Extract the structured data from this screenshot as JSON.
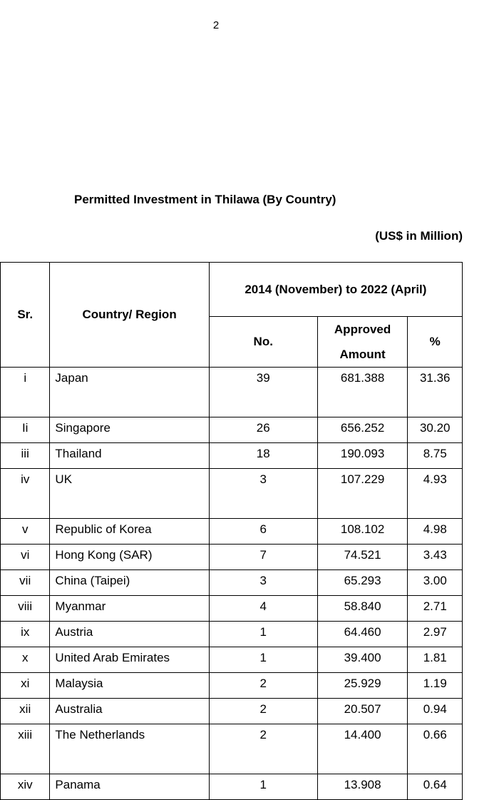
{
  "page_number": "2",
  "title": "Permitted Investment in Thilawa (By Country)",
  "unit_note": "(US$ in Million)",
  "table": {
    "headers": {
      "sr": "Sr.",
      "country": "Country/ Region",
      "period": "2014 (November) to 2022 (April)",
      "no": "No.",
      "amount_line1": "Approved",
      "amount_line2": "Amount",
      "pct": "%"
    },
    "rows": [
      {
        "sr": "i",
        "country": "Japan",
        "no": "39",
        "amount": "681.388",
        "pct": "31.36"
      },
      {
        "sr": "Ii",
        "country": "Singapore",
        "no": "26",
        "amount": "656.252",
        "pct": "30.20"
      },
      {
        "sr": "iii",
        "country": "Thailand",
        "no": "18",
        "amount": "190.093",
        "pct": "8.75"
      },
      {
        "sr": "iv",
        "country": "UK",
        "no": "3",
        "amount": "107.229",
        "pct": "4.93"
      },
      {
        "sr": "v",
        "country": "Republic of Korea",
        "no": "6",
        "amount": "108.102",
        "pct": "4.98"
      },
      {
        "sr": "vi",
        "country": "Hong Kong (SAR)",
        "no": "7",
        "amount": "74.521",
        "pct": "3.43"
      },
      {
        "sr": "vii",
        "country": "China (Taipei)",
        "no": "3",
        "amount": "65.293",
        "pct": "3.00"
      },
      {
        "sr": "viii",
        "country": "Myanmar",
        "no": "4",
        "amount": "58.840",
        "pct": "2.71"
      },
      {
        "sr": "ix",
        "country": "Austria",
        "no": "1",
        "amount": "64.460",
        "pct": "2.97"
      },
      {
        "sr": "x",
        "country": "United Arab Emirates",
        "no": "1",
        "amount": "39.400",
        "pct": "1.81"
      },
      {
        "sr": "xi",
        "country": "Malaysia",
        "no": "2",
        "amount": "25.929",
        "pct": "1.19"
      },
      {
        "sr": "xii",
        "country": "Australia",
        "no": "2",
        "amount": "20.507",
        "pct": "0.94"
      },
      {
        "sr": "xiii",
        "country": "The Netherlands",
        "no": "2",
        "amount": "14.400",
        "pct": "0.66"
      },
      {
        "sr": "xiv",
        "country": "Panama",
        "no": "1",
        "amount": "13.908",
        "pct": "0.64"
      }
    ]
  }
}
